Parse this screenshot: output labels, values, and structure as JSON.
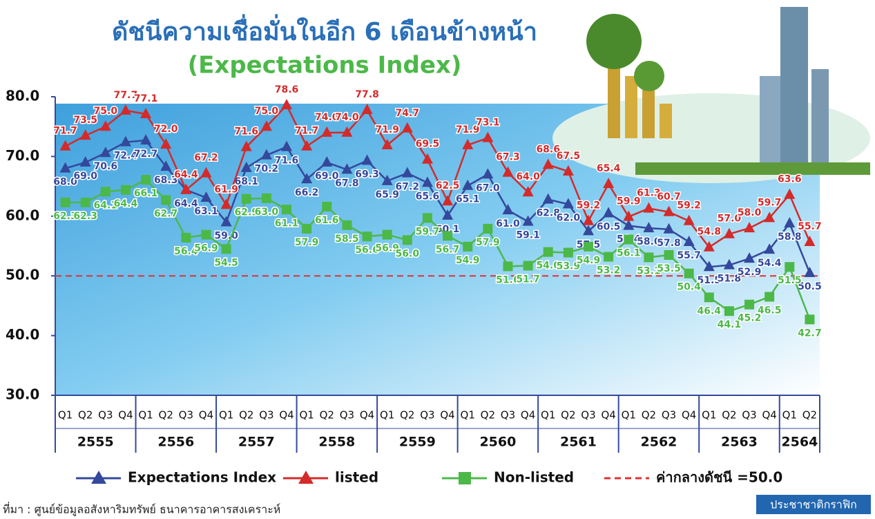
{
  "chart_data": {
    "type": "line",
    "title": "ดัชนีความเชื่อมั่นในอีก 6 เดือนข้างหน้า",
    "subtitle": "(Expectations Index)",
    "categories": [
      "Q1",
      "Q2",
      "Q3",
      "Q4",
      "Q1",
      "Q2",
      "Q3",
      "Q4",
      "Q1",
      "Q2",
      "Q3",
      "Q4",
      "Q1",
      "Q2",
      "Q3",
      "Q4",
      "Q1",
      "Q2",
      "Q3",
      "Q4",
      "Q1",
      "Q2",
      "Q3",
      "Q4",
      "Q1",
      "Q2",
      "Q3",
      "Q4",
      "Q1",
      "Q2",
      "Q3",
      "Q4",
      "Q1",
      "Q2",
      "Q3",
      "Q4",
      "Q1",
      "Q2"
    ],
    "years": [
      "2555",
      "2556",
      "2557",
      "2558",
      "2559",
      "2560",
      "2561",
      "2562",
      "2563",
      "2564"
    ],
    "ylim": [
      30,
      80
    ],
    "yticks": [
      {
        "value": 30,
        "label": "30.0"
      },
      {
        "value": 40,
        "label": "40.0"
      },
      {
        "value": 50,
        "label": "50.0"
      },
      {
        "value": 60,
        "label": "60.0"
      },
      {
        "value": 70,
        "label": "70.0"
      },
      {
        "value": 80,
        "label": "80.0"
      }
    ],
    "series": [
      {
        "name": "Expectations Index",
        "color": "#34489c",
        "marker": "triangle",
        "label_pos": "below",
        "values": [
          68.0,
          69.0,
          70.6,
          72.4,
          72.7,
          68.3,
          64.4,
          63.1,
          59.0,
          68.1,
          70.2,
          71.6,
          66.2,
          69.0,
          67.8,
          69.3,
          65.9,
          67.2,
          65.6,
          60.1,
          65.1,
          67.0,
          61.0,
          59.1,
          62.8,
          62.0,
          57.5,
          60.5,
          58.4,
          58.0,
          57.8,
          55.7,
          51.5,
          51.8,
          52.9,
          54.4,
          58.8,
          50.5
        ],
        "value_labels": [
          "68.0",
          "69.0",
          "70.6",
          "72.4",
          "72.7",
          "68.3",
          "64.4",
          "63.1",
          "59.0",
          "68.1",
          "70.2",
          "71.6",
          "66.2",
          "69.0",
          "67.8",
          "69.3",
          "65.9",
          "67.2",
          "65.6",
          "60.1",
          "65.1",
          "67.0",
          "61.0",
          "59.1",
          "62.8",
          "62.0",
          "57.5",
          "60.5",
          "58.4",
          "58.0",
          "57.8",
          "55.7",
          "51.5",
          "51.8",
          "52.9",
          "54.4",
          "58.8",
          "50.5"
        ]
      },
      {
        "name": "listed",
        "color": "#d42a2a",
        "marker": "triangle",
        "label_pos": "above",
        "values": [
          71.7,
          73.5,
          75.0,
          77.7,
          77.1,
          72.0,
          64.4,
          67.2,
          61.9,
          71.6,
          75.0,
          78.6,
          71.7,
          74.0,
          74.0,
          77.8,
          71.9,
          74.7,
          69.5,
          62.5,
          71.9,
          73.1,
          67.3,
          64.0,
          68.6,
          67.5,
          59.2,
          65.4,
          59.9,
          61.3,
          60.7,
          59.2,
          54.8,
          57.0,
          58.0,
          59.7,
          63.6,
          55.7
        ],
        "value_labels": [
          "71.7",
          "73.5",
          "75.0",
          "77.7",
          "77.1",
          "72.0",
          "64.4",
          "67.2",
          "61.9",
          "71.6",
          "75.0",
          "78.6",
          "71.7",
          "74.0",
          "74.0",
          "77.8",
          "71.9",
          "74.7",
          "69.5",
          "62.5",
          "71.9",
          "73.1",
          "67.3",
          "64.0",
          "68.6",
          "67.5",
          "59.2",
          "65.4",
          "59.9",
          "61.3",
          "60.7",
          "59.2",
          "54.8",
          "57.0",
          "58.0",
          "59.7",
          "63.6",
          "55.7"
        ]
      },
      {
        "name": "Non-listed",
        "color": "#4cb848",
        "marker": "square",
        "label_pos": "below",
        "values": [
          62.3,
          62.3,
          64.1,
          64.4,
          66.1,
          62.7,
          56.4,
          56.9,
          54.5,
          62.9,
          63.0,
          61.1,
          57.9,
          61.6,
          58.5,
          56.6,
          56.9,
          56.0,
          59.7,
          56.7,
          54.9,
          57.9,
          51.6,
          51.7,
          54.0,
          53.9,
          54.9,
          53.2,
          56.1,
          53.1,
          53.5,
          50.4,
          46.4,
          44.1,
          45.2,
          46.5,
          51.5,
          42.7
        ],
        "value_labels": [
          "62.3",
          "62.3",
          "64.1",
          "64.4",
          "66.1",
          "62.7",
          "56.4",
          "56.9",
          "54.5",
          "62.9",
          "63.0",
          "61.1",
          "57.9",
          "61.6",
          "58.5",
          "56.6",
          "56.9",
          "56.0",
          "59.7",
          "56.7",
          "54.9",
          "57.9",
          "51.6",
          "51.7",
          "54.0",
          "53.9",
          "54.9",
          "53.2",
          "56.1",
          "53.1",
          "53.5",
          "50.4",
          "46.4",
          "44.1",
          "45.2",
          "46.5",
          "51.5",
          "42.7"
        ]
      }
    ],
    "reference": {
      "value": 50.0,
      "label": "ค่ากลางดัชนี =50.0",
      "color": "#e03030"
    },
    "source": "ที่มา : ศูนย์ข้อมูลอสังหาริมทรัพย์ ธนาคารอาคารสงเคราะห์",
    "brand": "ประชาชาติกราฟิก"
  }
}
